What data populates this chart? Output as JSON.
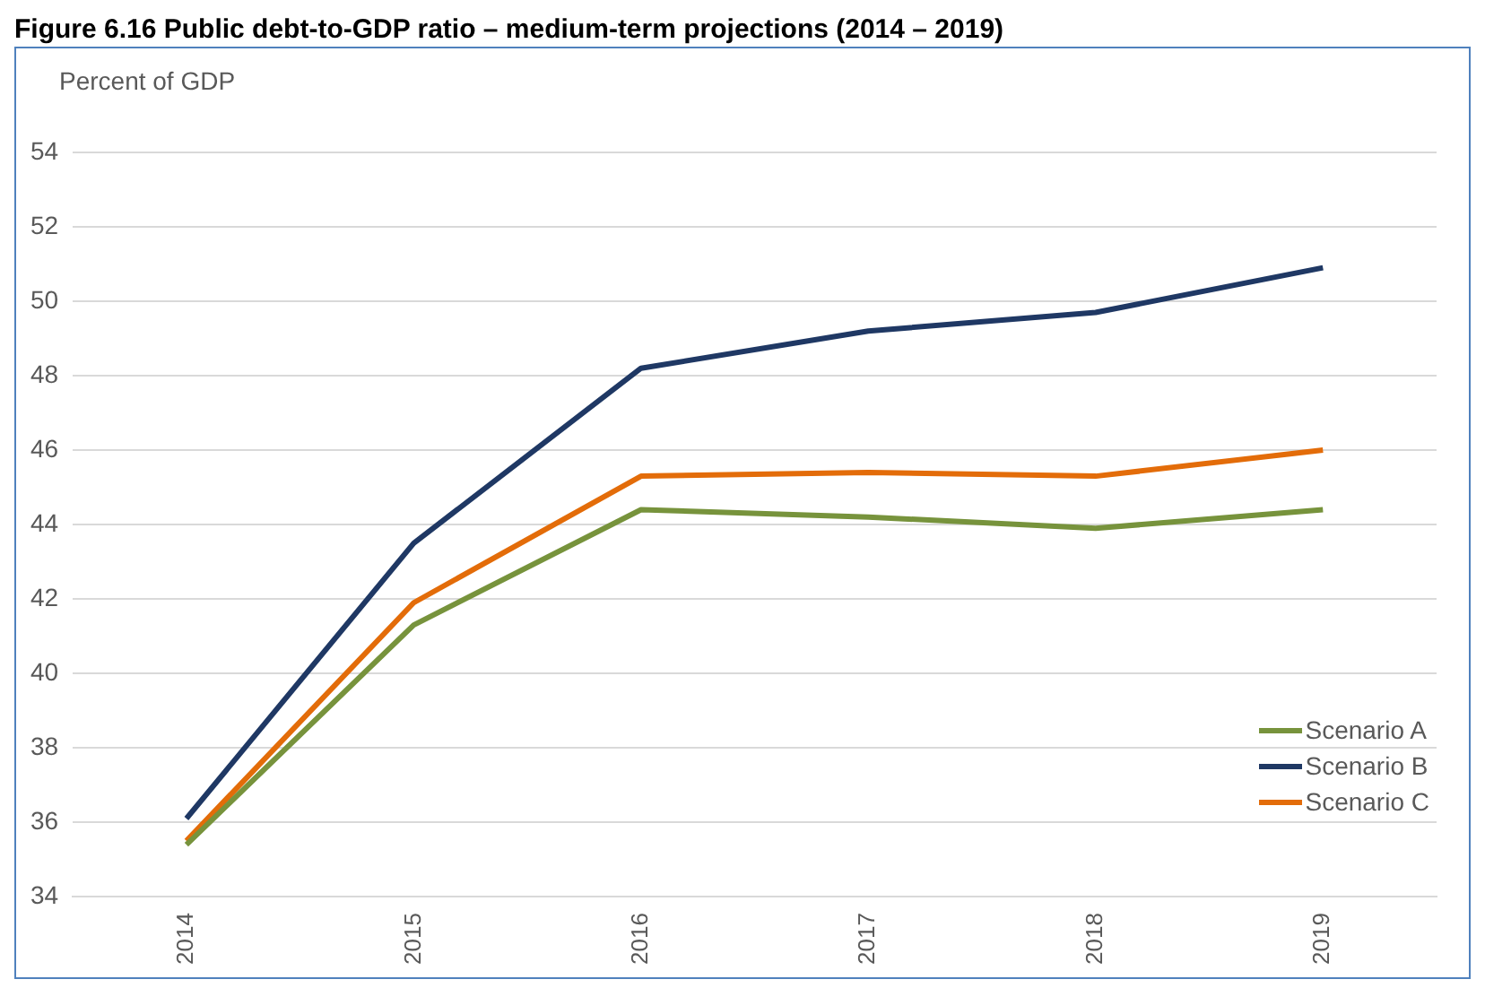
{
  "chart_data": {
    "type": "line",
    "title": "Figure 6.16 Public debt-to-GDP ratio – medium-term projections (2014 – 2019)",
    "ylabel": "Percent of GDP",
    "categories": [
      "2014",
      "2015",
      "2016",
      "2017",
      "2018",
      "2019"
    ],
    "series": [
      {
        "name": "Scenario A",
        "color": "#77933c",
        "values": [
          35.4,
          41.3,
          44.4,
          44.2,
          43.9,
          44.4
        ]
      },
      {
        "name": "Scenario B",
        "color": "#1f3864",
        "values": [
          36.1,
          43.5,
          48.2,
          49.2,
          49.7,
          50.9
        ]
      },
      {
        "name": "Scenario C",
        "color": "#e36c09",
        "values": [
          35.5,
          41.9,
          45.3,
          45.4,
          45.3,
          46.0
        ]
      }
    ],
    "ylim": [
      34,
      54
    ],
    "yticks": [
      34,
      36,
      38,
      40,
      42,
      44,
      46,
      48,
      50,
      52,
      54
    ],
    "grid": "y",
    "legend": "bottom right",
    "marker": "none",
    "line_style": "solid"
  }
}
